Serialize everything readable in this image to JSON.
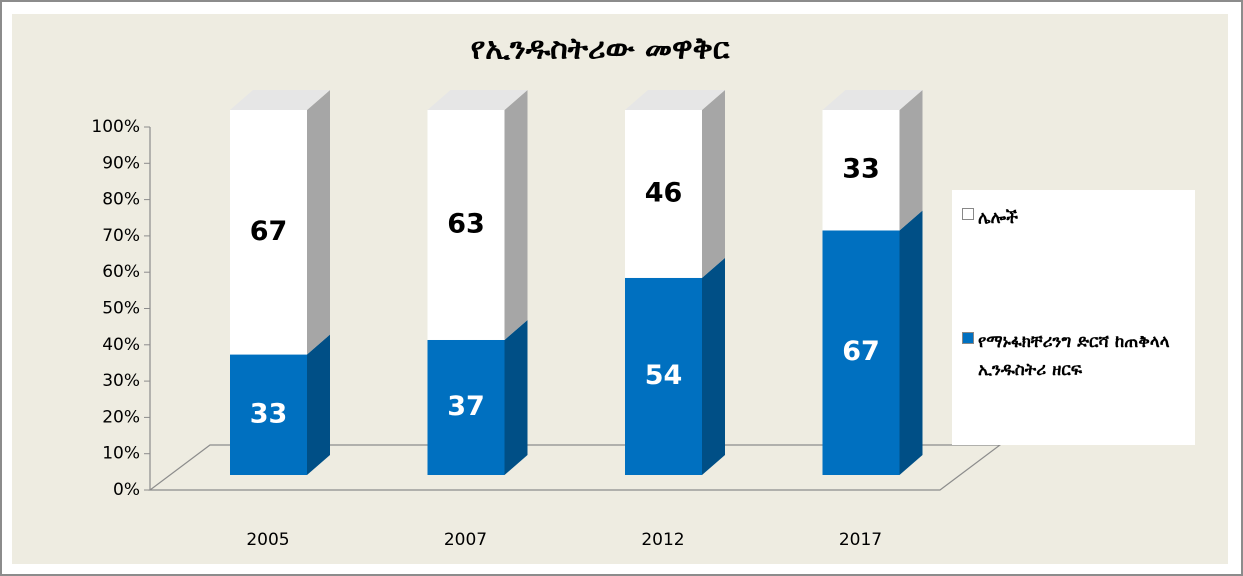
{
  "chart_data": {
    "type": "bar",
    "stacked": true,
    "three_d": true,
    "title": "የኢንዱስትሪው መዋቅር",
    "categories": [
      "2005",
      "2007",
      "2012",
      "2017"
    ],
    "series": [
      {
        "name": "የማኑፋክቸሪንግ ድርሻ ከጠቅላላ ኢንዱስትሪ ዘርፍ",
        "color": "#0070c0",
        "side_color": "#004f86",
        "label_color": "#ffffff",
        "values": [
          33,
          37,
          54,
          67
        ]
      },
      {
        "name": "ሌሎች",
        "color": "#ffffff",
        "side_color": "#a6a6a6",
        "label_color": "#000000",
        "values": [
          67,
          63,
          46,
          33
        ]
      }
    ],
    "ylim": [
      0,
      100
    ],
    "yticks": [
      {
        "value": 0,
        "label": "0%"
      },
      {
        "value": 10,
        "label": "10%"
      },
      {
        "value": 20,
        "label": "20%"
      },
      {
        "value": 30,
        "label": "30%"
      },
      {
        "value": 40,
        "label": "40%"
      },
      {
        "value": 50,
        "label": "50%"
      },
      {
        "value": 60,
        "label": "60%"
      },
      {
        "value": 70,
        "label": "70%"
      },
      {
        "value": 80,
        "label": "80%"
      },
      {
        "value": 90,
        "label": "90%"
      },
      {
        "value": 100,
        "label": "100%"
      }
    ],
    "grid": false,
    "legend": "right"
  }
}
